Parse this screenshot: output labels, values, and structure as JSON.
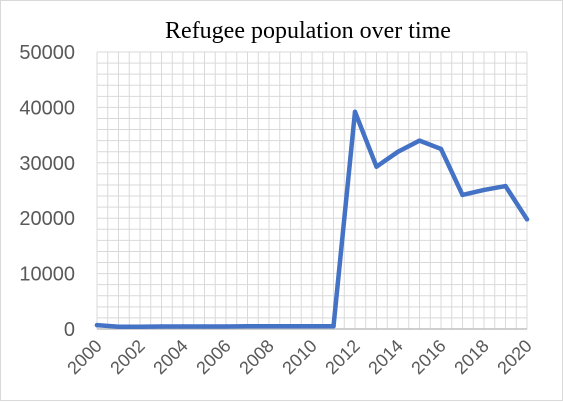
{
  "chart_data": {
    "type": "line",
    "title": "Refugee population over time",
    "xlabel": "",
    "ylabel": "",
    "x": [
      2000,
      2001,
      2002,
      2003,
      2004,
      2005,
      2006,
      2007,
      2008,
      2009,
      2010,
      2011,
      2012,
      2013,
      2014,
      2015,
      2016,
      2017,
      2018,
      2019,
      2020
    ],
    "x_tick_labels": [
      "2000",
      "2002",
      "2004",
      "2006",
      "2008",
      "2010",
      "2012",
      "2014",
      "2016",
      "2018",
      "2020"
    ],
    "y_tick_labels": [
      "0",
      "10000",
      "20000",
      "30000",
      "40000",
      "50000"
    ],
    "ylim": [
      0,
      50000
    ],
    "xlim": [
      2000,
      2020
    ],
    "series": [
      {
        "values": [
          700,
          400,
          400,
          450,
          450,
          450,
          450,
          500,
          500,
          500,
          500,
          500,
          39200,
          29300,
          32000,
          34000,
          32500,
          24200,
          25100,
          25800,
          19800
        ]
      }
    ],
    "grid": true,
    "legend": "none",
    "line_color": "#4472c4",
    "grid_color": "#d9d9d9"
  }
}
